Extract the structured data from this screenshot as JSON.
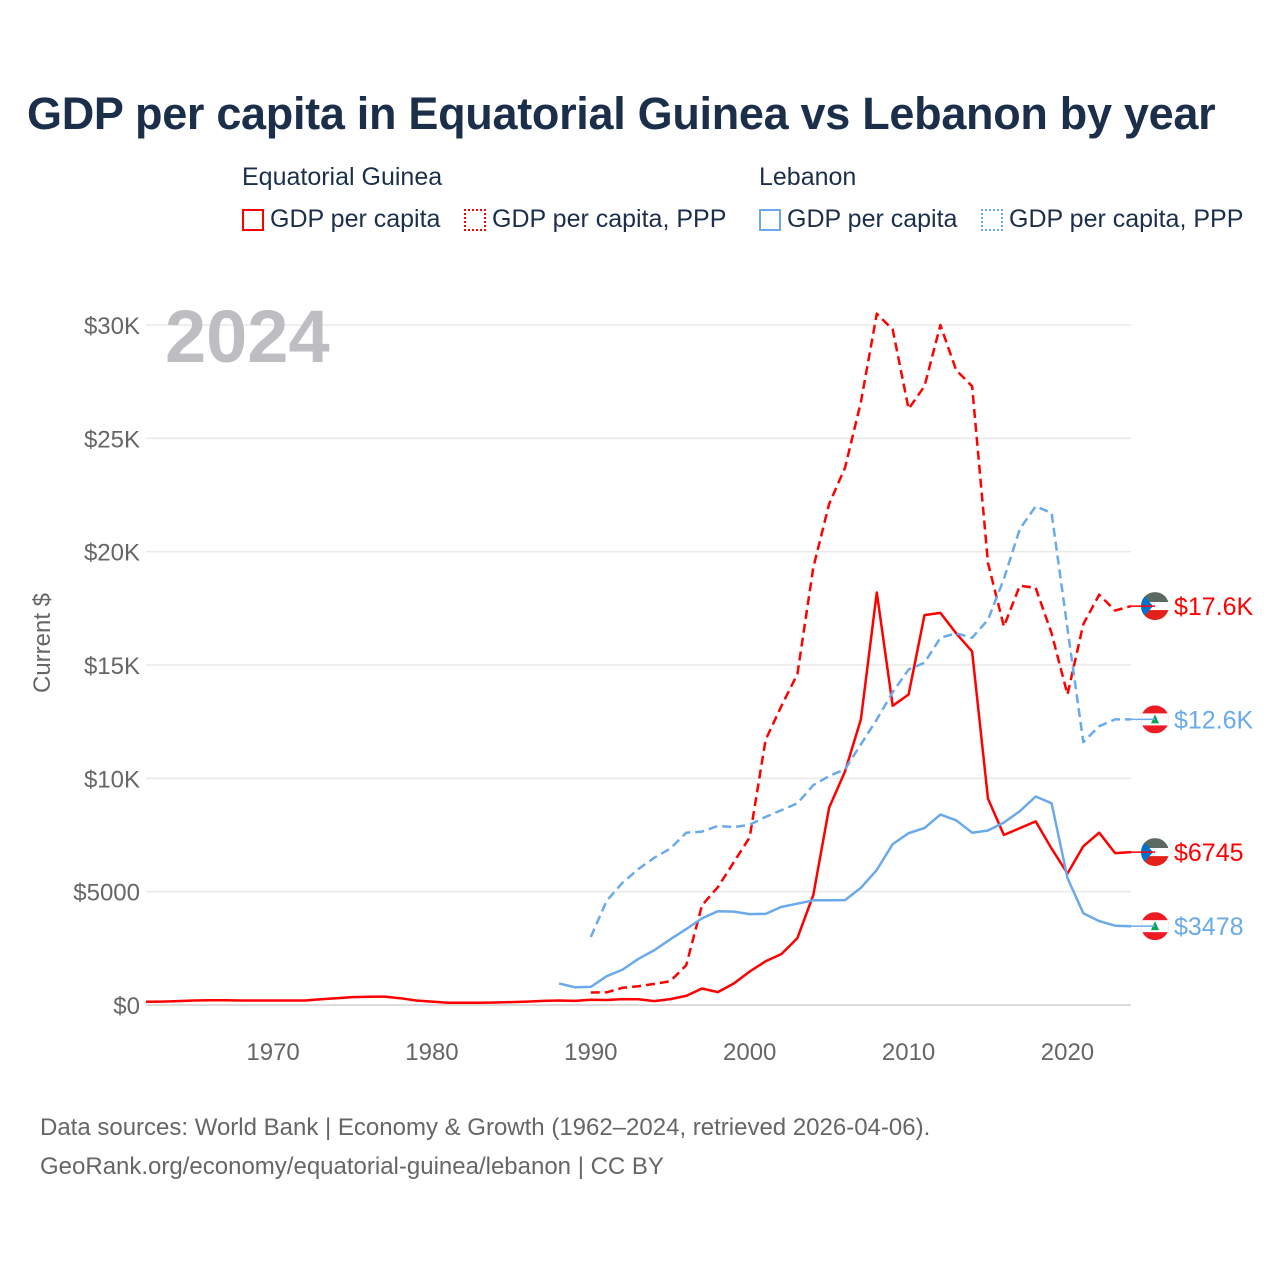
{
  "title": "GDP per capita in Equatorial Guinea vs Lebanon by year",
  "legend": {
    "groups": [
      {
        "country": "Equatorial Guinea",
        "items": [
          "GDP per capita",
          "GDP per capita, PPP"
        ]
      },
      {
        "country": "Lebanon",
        "items": [
          "GDP per capita",
          "GDP per capita, PPP"
        ]
      }
    ]
  },
  "year_watermark": "2024",
  "footer": {
    "line1": "Data sources: World Bank | Economy & Growth (1962–2024, retrieved 2026-04-06).",
    "line2": "GeoRank.org/economy/equatorial-guinea/lebanon | CC BY"
  },
  "colors": {
    "eq_guinea": "#ff0000",
    "lebanon": "#6aaaea",
    "grid": "#e6e6e6",
    "axis_text": "#666666",
    "title": "#1b2f4b",
    "watermark": "#bdbdc2"
  },
  "chart_data": {
    "type": "line",
    "title": "GDP per capita in Equatorial Guinea vs Lebanon by year",
    "xlabel": "",
    "ylabel": "Current $",
    "xlim": [
      1962,
      2024
    ],
    "ylim": [
      0,
      30000
    ],
    "x_ticks": [
      1970,
      1980,
      1990,
      2000,
      2010,
      2020
    ],
    "x_tick_labels": [
      "1970",
      "1980",
      "1990",
      "2000",
      "2010",
      "2020"
    ],
    "y_ticks": [
      0,
      5000,
      10000,
      15000,
      20000,
      25000,
      30000
    ],
    "y_tick_labels": [
      "$0",
      "$5000",
      "$10K",
      "$15K",
      "$20K",
      "$25K",
      "$30K"
    ],
    "grid": true,
    "legend_position": "top",
    "series": [
      {
        "name": "Equatorial Guinea GDP per capita",
        "color": "#ff0000",
        "dash": "solid",
        "end_label": "$6745",
        "start": 1962,
        "values": [
          140,
          150,
          170,
          200,
          210,
          210,
          200,
          200,
          200,
          200,
          200,
          250,
          300,
          350,
          360,
          370,
          300,
          200,
          150,
          100,
          100,
          100,
          110,
          130,
          150,
          180,
          200,
          180,
          230,
          220,
          260,
          250,
          170,
          260,
          400,
          730,
          570,
          950,
          1480,
          1930,
          2250,
          2950,
          4850,
          8700,
          10300,
          12600,
          18200,
          13200,
          13700,
          17200,
          17300,
          16400,
          15600,
          9100,
          7500,
          7800,
          8100,
          6900,
          5800,
          7000,
          7600,
          6700,
          6745
        ]
      },
      {
        "name": "Equatorial Guinea GDP per capita, PPP",
        "color": "#ff0000",
        "dash": "dashed",
        "end_label": "$17.6K",
        "start": 1990,
        "values": [
          550,
          560,
          760,
          830,
          930,
          1050,
          1750,
          4400,
          5200,
          6300,
          7400,
          11700,
          13200,
          14600,
          19300,
          22100,
          23700,
          26600,
          30500,
          29800,
          26300,
          27300,
          30000,
          28000,
          27300,
          19500,
          16700,
          18500,
          18400,
          16400,
          13700,
          16800,
          18100,
          17400,
          17600
        ]
      },
      {
        "name": "Lebanon GDP per capita",
        "color": "#6aaaea",
        "dash": "solid",
        "end_label": "$3478",
        "start": 1988,
        "values": [
          950,
          780,
          800,
          1270,
          1560,
          2040,
          2420,
          2900,
          3350,
          3820,
          4140,
          4120,
          4010,
          4020,
          4330,
          4470,
          4620,
          4620,
          4630,
          5170,
          5960,
          7100,
          7580,
          7810,
          8400,
          8150,
          7600,
          7700,
          8050,
          8550,
          9200,
          8900,
          5600,
          4050,
          3700,
          3500,
          3478
        ]
      },
      {
        "name": "Lebanon GDP per capita, PPP",
        "color": "#6aaaea",
        "dash": "dashed",
        "end_label": "$12.6K",
        "start": 1990,
        "values": [
          3000,
          4600,
          5400,
          6000,
          6500,
          6900,
          7600,
          7650,
          7900,
          7850,
          7950,
          8300,
          8600,
          8900,
          9700,
          10100,
          10400,
          11500,
          12600,
          13800,
          14800,
          15100,
          16200,
          16400,
          16200,
          17000,
          18800,
          21000,
          22000,
          21700,
          16600,
          11600,
          12300,
          12600,
          12600
        ]
      }
    ]
  }
}
